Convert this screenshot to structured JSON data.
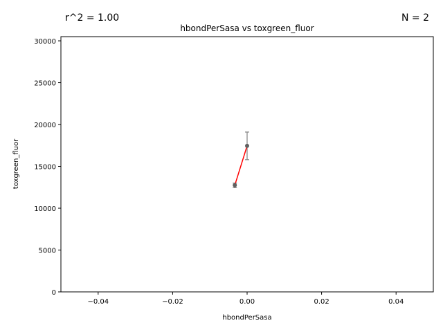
{
  "annotations": {
    "r2": "r^2 = 1.00",
    "n": "N = 2"
  },
  "chart_data": {
    "type": "scatter",
    "title": "hbondPerSasa vs toxgreen_fluor",
    "xlabel": "hbondPerSasa",
    "ylabel": "toxgreen_fluor",
    "xlim": [
      -0.05,
      0.05
    ],
    "ylim": [
      0,
      30500
    ],
    "xticks": [
      -0.04,
      -0.02,
      0.0,
      0.02,
      0.04
    ],
    "xtick_labels": [
      "−0.04",
      "−0.02",
      "0.00",
      "0.02",
      "0.04"
    ],
    "yticks": [
      0,
      5000,
      10000,
      15000,
      20000,
      25000,
      30000
    ],
    "ytick_labels": [
      "0",
      "5000",
      "10000",
      "15000",
      "20000",
      "25000",
      "30000"
    ],
    "grid": false,
    "points": [
      {
        "x": -0.0033,
        "y": 12750,
        "err_low": 12450,
        "err_high": 13000
      },
      {
        "x": 0.0,
        "y": 17450,
        "err_low": 15800,
        "err_high": 19100
      }
    ],
    "fit_line": {
      "x": [
        -0.0033,
        0.0
      ],
      "y": [
        12750,
        17450
      ]
    },
    "colors": {
      "points": "#606060",
      "errorbars": "#808080",
      "fit": "#ff0000",
      "axes": "#000000"
    }
  }
}
